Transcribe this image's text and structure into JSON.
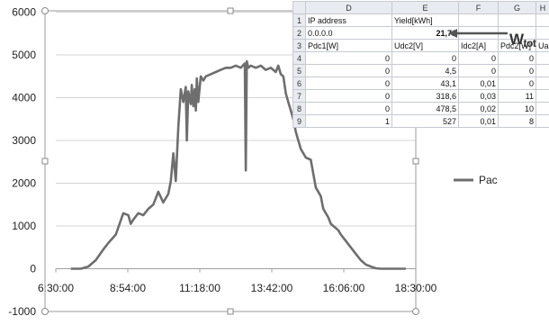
{
  "chart_data": {
    "type": "line",
    "title": "",
    "xlabel": "",
    "ylabel": "",
    "ylim": [
      -1000,
      6000
    ],
    "yticks": [
      -1000,
      0,
      1000,
      2000,
      3000,
      4000,
      5000,
      6000
    ],
    "xlim": [
      "6:30:00",
      "18:30:00"
    ],
    "xticks": [
      "6:30:00",
      "8:54:00",
      "11:18:00",
      "13:42:00",
      "16:06:00",
      "18:30:00"
    ],
    "legend": "right",
    "grid": "horizontal",
    "series": [
      {
        "name": "Pac",
        "color": "#6e6e6e",
        "x": [
          "7:00",
          "7:20",
          "7:35",
          "7:50",
          "8:05",
          "8:15",
          "8:30",
          "8:45",
          "8:55",
          "9:00",
          "9:05",
          "9:15",
          "9:25",
          "9:35",
          "9:45",
          "9:55",
          "10:05",
          "10:15",
          "10:20",
          "10:25",
          "10:30",
          "10:35",
          "10:40",
          "10:45",
          "10:50",
          "10:52",
          "10:55",
          "11:00",
          "11:02",
          "11:05",
          "11:08",
          "11:10",
          "11:12",
          "11:15",
          "11:20",
          "11:25",
          "11:30",
          "11:40",
          "11:50",
          "12:00",
          "12:10",
          "12:20",
          "12:30",
          "12:40",
          "12:48",
          "12:50",
          "12:52",
          "12:55",
          "13:00",
          "13:10",
          "13:20",
          "13:30",
          "13:40",
          "13:50",
          "13:55",
          "14:00",
          "14:05",
          "14:10",
          "14:15",
          "14:20",
          "14:25",
          "14:30",
          "14:40",
          "14:50",
          "15:00",
          "15:10",
          "15:20",
          "15:25",
          "15:30",
          "15:35",
          "15:40",
          "15:45",
          "15:50",
          "15:55",
          "16:00",
          "16:10",
          "16:20",
          "16:30",
          "16:40",
          "16:50",
          "17:00",
          "17:10",
          "17:20",
          "17:30",
          "17:40",
          "17:50",
          "18:00",
          "18:10"
        ],
        "values": [
          0,
          0,
          50,
          200,
          450,
          600,
          800,
          1300,
          1250,
          1050,
          1150,
          1300,
          1250,
          1400,
          1500,
          1800,
          1550,
          1750,
          2050,
          2700,
          2050,
          3300,
          4200,
          3900,
          4250,
          3000,
          4150,
          3850,
          4300,
          3800,
          4200,
          3700,
          4450,
          3900,
          4500,
          4400,
          4500,
          4550,
          4600,
          4650,
          4700,
          4700,
          4750,
          4700,
          4800,
          2300,
          4850,
          4700,
          4750,
          4700,
          4750,
          4650,
          4700,
          4600,
          4750,
          4550,
          4500,
          4100,
          3900,
          3700,
          3500,
          3200,
          2800,
          2600,
          2550,
          1900,
          1700,
          1400,
          1300,
          1200,
          1050,
          1000,
          950,
          900,
          800,
          650,
          500,
          350,
          200,
          100,
          50,
          10,
          0,
          0,
          0,
          0,
          0,
          0
        ]
      }
    ]
  },
  "spreadsheet": {
    "columns": [
      "D",
      "E",
      "F",
      "G",
      "H"
    ],
    "rows": [
      {
        "n": "1",
        "cells": [
          "IP address",
          "Yield[kWh]",
          "",
          "",
          ""
        ]
      },
      {
        "n": "2",
        "cells": [
          "0.0.0.0",
          "21,71",
          "",
          "",
          ""
        ]
      },
      {
        "n": "3",
        "cells": [
          "Pdc1[W]",
          "Udc2[V]",
          "Idc2[A]",
          "Pdc2[W]",
          "Ua"
        ]
      },
      {
        "n": "4",
        "cells": [
          "0",
          "0",
          "0",
          "0",
          ""
        ]
      },
      {
        "n": "5",
        "cells": [
          "0",
          "4,5",
          "0",
          "0",
          ""
        ]
      },
      {
        "n": "6",
        "cells": [
          "0",
          "43,1",
          "0,01",
          "0",
          ""
        ]
      },
      {
        "n": "7",
        "cells": [
          "0",
          "318,6",
          "0,03",
          "11",
          ""
        ]
      },
      {
        "n": "8",
        "cells": [
          "0",
          "478,5",
          "0,02",
          "10",
          ""
        ]
      },
      {
        "n": "9",
        "cells": [
          "1",
          "527",
          "0,01",
          "8",
          ""
        ]
      }
    ]
  },
  "annotation": {
    "main": "W",
    "sub": "tot"
  }
}
